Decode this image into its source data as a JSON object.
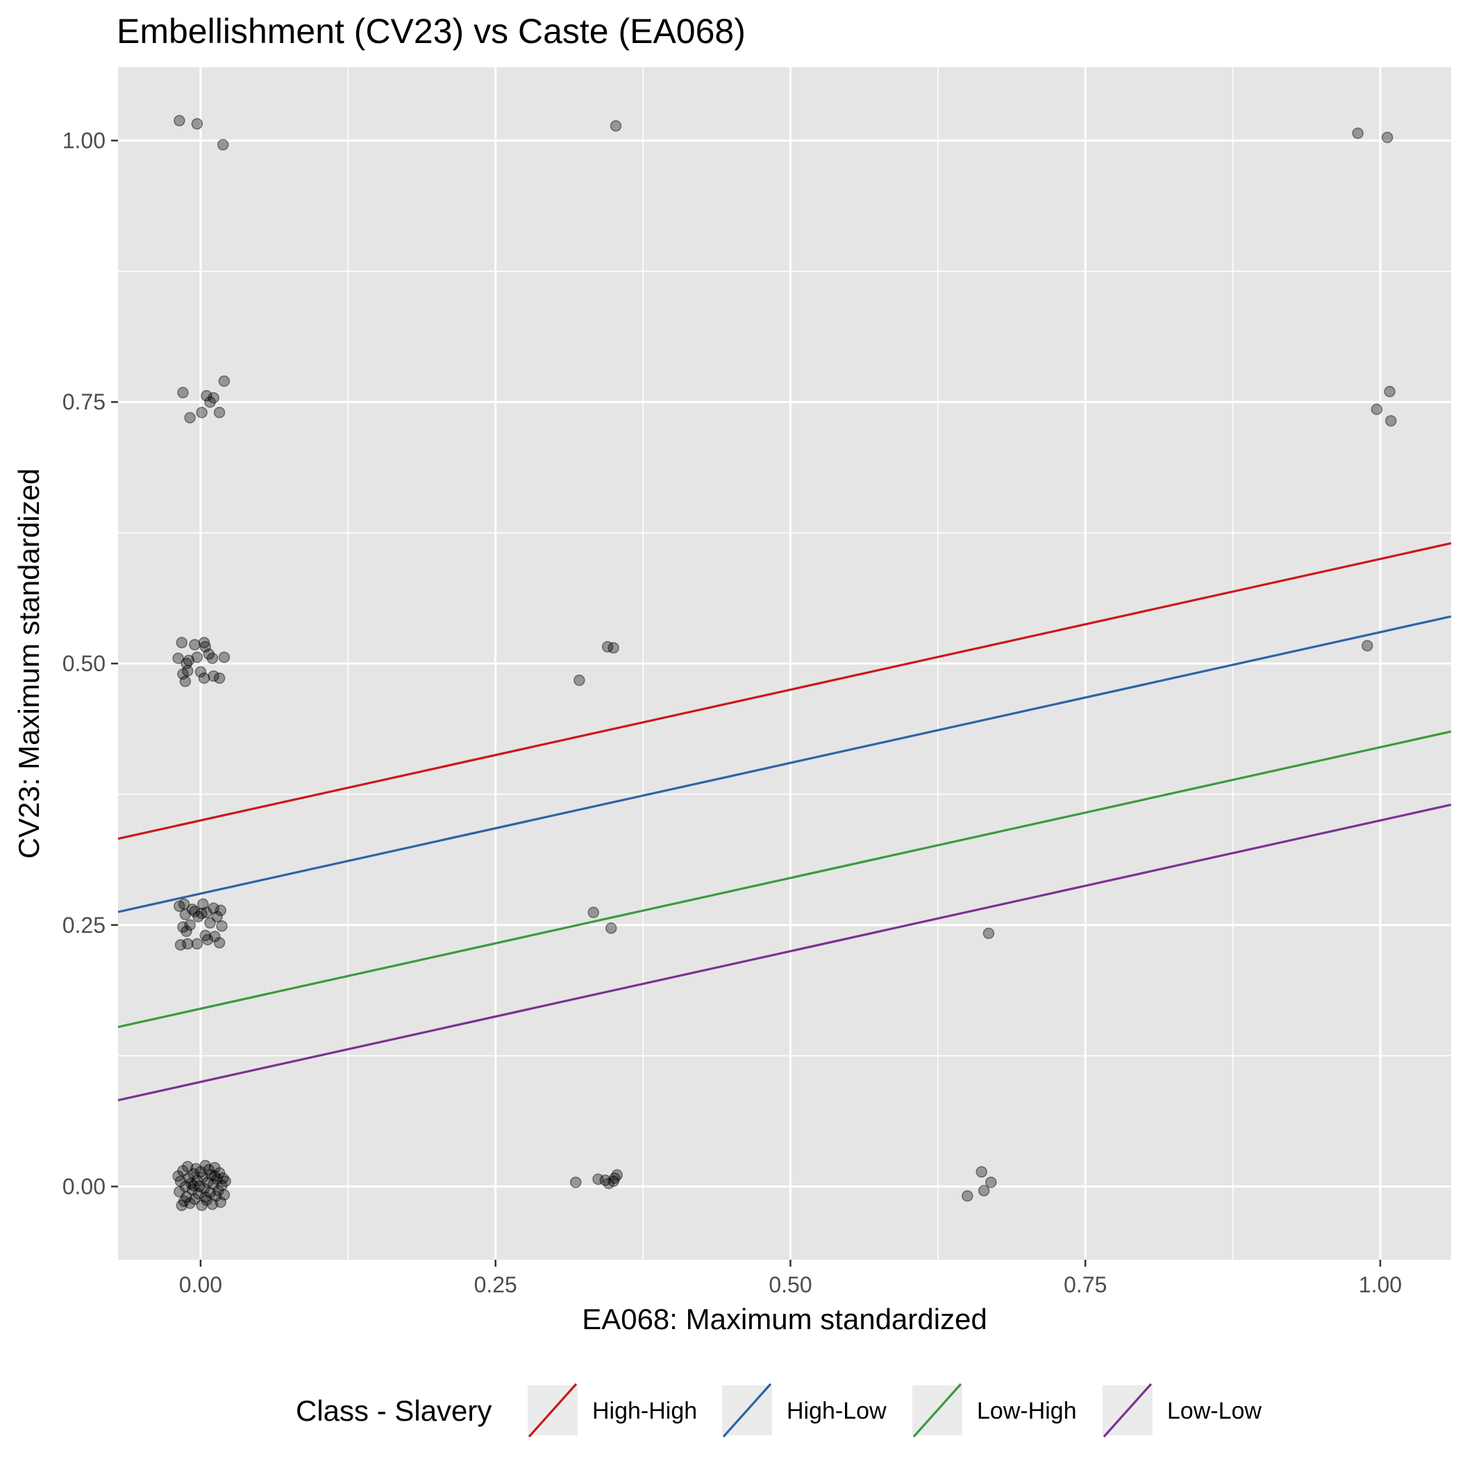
{
  "chart_data": {
    "type": "scatter",
    "title": "Embellishment (CV23) vs Caste (EA068)",
    "xlabel": "EA068: Maximum standardized",
    "ylabel": "CV23: Maximum standardized",
    "xlim": [
      -0.07,
      1.06
    ],
    "ylim": [
      -0.07,
      1.07
    ],
    "x_ticks": [
      0,
      0.25,
      0.5,
      0.75,
      1
    ],
    "x_tick_labels": [
      "0.00",
      "0.25",
      "0.50",
      "0.75",
      "1.00"
    ],
    "y_ticks": [
      0,
      0.25,
      0.5,
      0.75,
      1
    ],
    "y_tick_labels": [
      "0.00",
      "0.25",
      "0.50",
      "0.75",
      "1.00"
    ],
    "grid": true,
    "background": "#e5e5e5",
    "point_color": "#000000",
    "point_alpha": 0.35,
    "points": [
      {
        "x": -0.018,
        "y": 1.019
      },
      {
        "x": -0.003,
        "y": 1.016
      },
      {
        "x": 0.019,
        "y": 0.996
      },
      {
        "x": 0.352,
        "y": 1.014
      },
      {
        "x": 0.981,
        "y": 1.007
      },
      {
        "x": 1.006,
        "y": 1.003
      },
      {
        "x": -0.015,
        "y": 0.759
      },
      {
        "x": -0.009,
        "y": 0.735
      },
      {
        "x": 0.001,
        "y": 0.74
      },
      {
        "x": 0.005,
        "y": 0.756
      },
      {
        "x": 0.008,
        "y": 0.75
      },
      {
        "x": 0.011,
        "y": 0.754
      },
      {
        "x": 0.016,
        "y": 0.74
      },
      {
        "x": 0.02,
        "y": 0.77
      },
      {
        "x": 0.997,
        "y": 0.743
      },
      {
        "x": 1.008,
        "y": 0.76
      },
      {
        "x": 1.009,
        "y": 0.732
      },
      {
        "x": -0.016,
        "y": 0.52
      },
      {
        "x": -0.019,
        "y": 0.505
      },
      {
        "x": -0.015,
        "y": 0.49
      },
      {
        "x": -0.013,
        "y": 0.483
      },
      {
        "x": -0.012,
        "y": 0.5
      },
      {
        "x": -0.011,
        "y": 0.493
      },
      {
        "x": -0.01,
        "y": 0.503
      },
      {
        "x": -0.005,
        "y": 0.518
      },
      {
        "x": -0.003,
        "y": 0.506
      },
      {
        "x": 0.0,
        "y": 0.492
      },
      {
        "x": 0.003,
        "y": 0.486
      },
      {
        "x": 0.003,
        "y": 0.52
      },
      {
        "x": 0.004,
        "y": 0.516
      },
      {
        "x": 0.007,
        "y": 0.509
      },
      {
        "x": 0.01,
        "y": 0.505
      },
      {
        "x": 0.011,
        "y": 0.488
      },
      {
        "x": 0.016,
        "y": 0.486
      },
      {
        "x": 0.02,
        "y": 0.506
      },
      {
        "x": 0.321,
        "y": 0.484
      },
      {
        "x": 0.345,
        "y": 0.516
      },
      {
        "x": 0.35,
        "y": 0.515
      },
      {
        "x": 0.989,
        "y": 0.517
      },
      {
        "x": -0.018,
        "y": 0.268
      },
      {
        "x": -0.017,
        "y": 0.231
      },
      {
        "x": -0.015,
        "y": 0.248
      },
      {
        "x": -0.014,
        "y": 0.27
      },
      {
        "x": -0.013,
        "y": 0.26
      },
      {
        "x": -0.012,
        "y": 0.244
      },
      {
        "x": -0.011,
        "y": 0.232
      },
      {
        "x": -0.009,
        "y": 0.25
      },
      {
        "x": -0.007,
        "y": 0.265
      },
      {
        "x": -0.005,
        "y": 0.263
      },
      {
        "x": -0.003,
        "y": 0.232
      },
      {
        "x": -0.002,
        "y": 0.258
      },
      {
        "x": 0.001,
        "y": 0.261
      },
      {
        "x": 0.002,
        "y": 0.27
      },
      {
        "x": 0.004,
        "y": 0.24
      },
      {
        "x": 0.005,
        "y": 0.262
      },
      {
        "x": 0.006,
        "y": 0.236
      },
      {
        "x": 0.008,
        "y": 0.252
      },
      {
        "x": 0.011,
        "y": 0.266
      },
      {
        "x": 0.012,
        "y": 0.239
      },
      {
        "x": 0.014,
        "y": 0.258
      },
      {
        "x": 0.016,
        "y": 0.233
      },
      {
        "x": 0.017,
        "y": 0.264
      },
      {
        "x": 0.018,
        "y": 0.249
      },
      {
        "x": 0.333,
        "y": 0.262
      },
      {
        "x": 0.348,
        "y": 0.247
      },
      {
        "x": 0.668,
        "y": 0.242
      },
      {
        "x": -0.019,
        "y": 0.01
      },
      {
        "x": -0.018,
        "y": -0.005
      },
      {
        "x": -0.017,
        "y": 0.005
      },
      {
        "x": -0.016,
        "y": -0.018
      },
      {
        "x": -0.015,
        "y": 0.015
      },
      {
        "x": -0.013,
        "y": 0.0
      },
      {
        "x": -0.012,
        "y": -0.01
      },
      {
        "x": -0.011,
        "y": 0.019
      },
      {
        "x": -0.01,
        "y": 0.008
      },
      {
        "x": -0.009,
        "y": -0.016
      },
      {
        "x": -0.008,
        "y": 0.003
      },
      {
        "x": -0.007,
        "y": -0.003
      },
      {
        "x": -0.006,
        "y": 0.012
      },
      {
        "x": -0.005,
        "y": -0.012
      },
      {
        "x": -0.004,
        "y": 0.017
      },
      {
        "x": -0.003,
        "y": 0.006
      },
      {
        "x": -0.002,
        "y": -0.007
      },
      {
        "x": -0.001,
        "y": 0.0
      },
      {
        "x": 0.0,
        "y": 0.014
      },
      {
        "x": 0.001,
        "y": -0.018
      },
      {
        "x": 0.002,
        "y": 0.009
      },
      {
        "x": 0.003,
        "y": -0.002
      },
      {
        "x": 0.004,
        "y": 0.02
      },
      {
        "x": 0.005,
        "y": -0.013
      },
      {
        "x": 0.006,
        "y": 0.004
      },
      {
        "x": 0.007,
        "y": 0.016
      },
      {
        "x": 0.008,
        "y": -0.006
      },
      {
        "x": 0.009,
        "y": 0.011
      },
      {
        "x": 0.01,
        "y": -0.017
      },
      {
        "x": 0.011,
        "y": 0.002
      },
      {
        "x": 0.012,
        "y": 0.018
      },
      {
        "x": 0.013,
        "y": -0.009
      },
      {
        "x": 0.014,
        "y": 0.007
      },
      {
        "x": 0.015,
        "y": -0.004
      },
      {
        "x": 0.016,
        "y": 0.013
      },
      {
        "x": 0.017,
        "y": -0.015
      },
      {
        "x": 0.018,
        "y": 0.001
      },
      {
        "x": 0.019,
        "y": 0.008
      },
      {
        "x": 0.02,
        "y": -0.008
      },
      {
        "x": 0.021,
        "y": 0.005
      },
      {
        "x": -0.014,
        "y": -0.014
      },
      {
        "x": -0.006,
        "y": 0.001
      },
      {
        "x": 0.004,
        "y": -0.01
      },
      {
        "x": 0.012,
        "y": 0.01
      },
      {
        "x": 0.318,
        "y": 0.004
      },
      {
        "x": 0.337,
        "y": 0.007
      },
      {
        "x": 0.343,
        "y": 0.006
      },
      {
        "x": 0.346,
        "y": 0.003
      },
      {
        "x": 0.35,
        "y": 0.005
      },
      {
        "x": 0.351,
        "y": 0.008
      },
      {
        "x": 0.353,
        "y": 0.011
      },
      {
        "x": 0.65,
        "y": -0.009
      },
      {
        "x": 0.662,
        "y": 0.014
      },
      {
        "x": 0.664,
        "y": -0.004
      },
      {
        "x": 0.67,
        "y": 0.004
      }
    ],
    "series": [
      {
        "name": "High-High",
        "color": "#cb181d",
        "intercept": 0.35,
        "slope": 0.25
      },
      {
        "name": "High-Low",
        "color": "#2b65a5",
        "intercept": 0.28,
        "slope": 0.25
      },
      {
        "name": "Low-High",
        "color": "#3b9b3b",
        "intercept": 0.17,
        "slope": 0.25
      },
      {
        "name": "Low-Low",
        "color": "#7b3294",
        "intercept": 0.1,
        "slope": 0.25
      }
    ],
    "legend": {
      "title": "Class - Slavery",
      "position": "bottom"
    }
  }
}
